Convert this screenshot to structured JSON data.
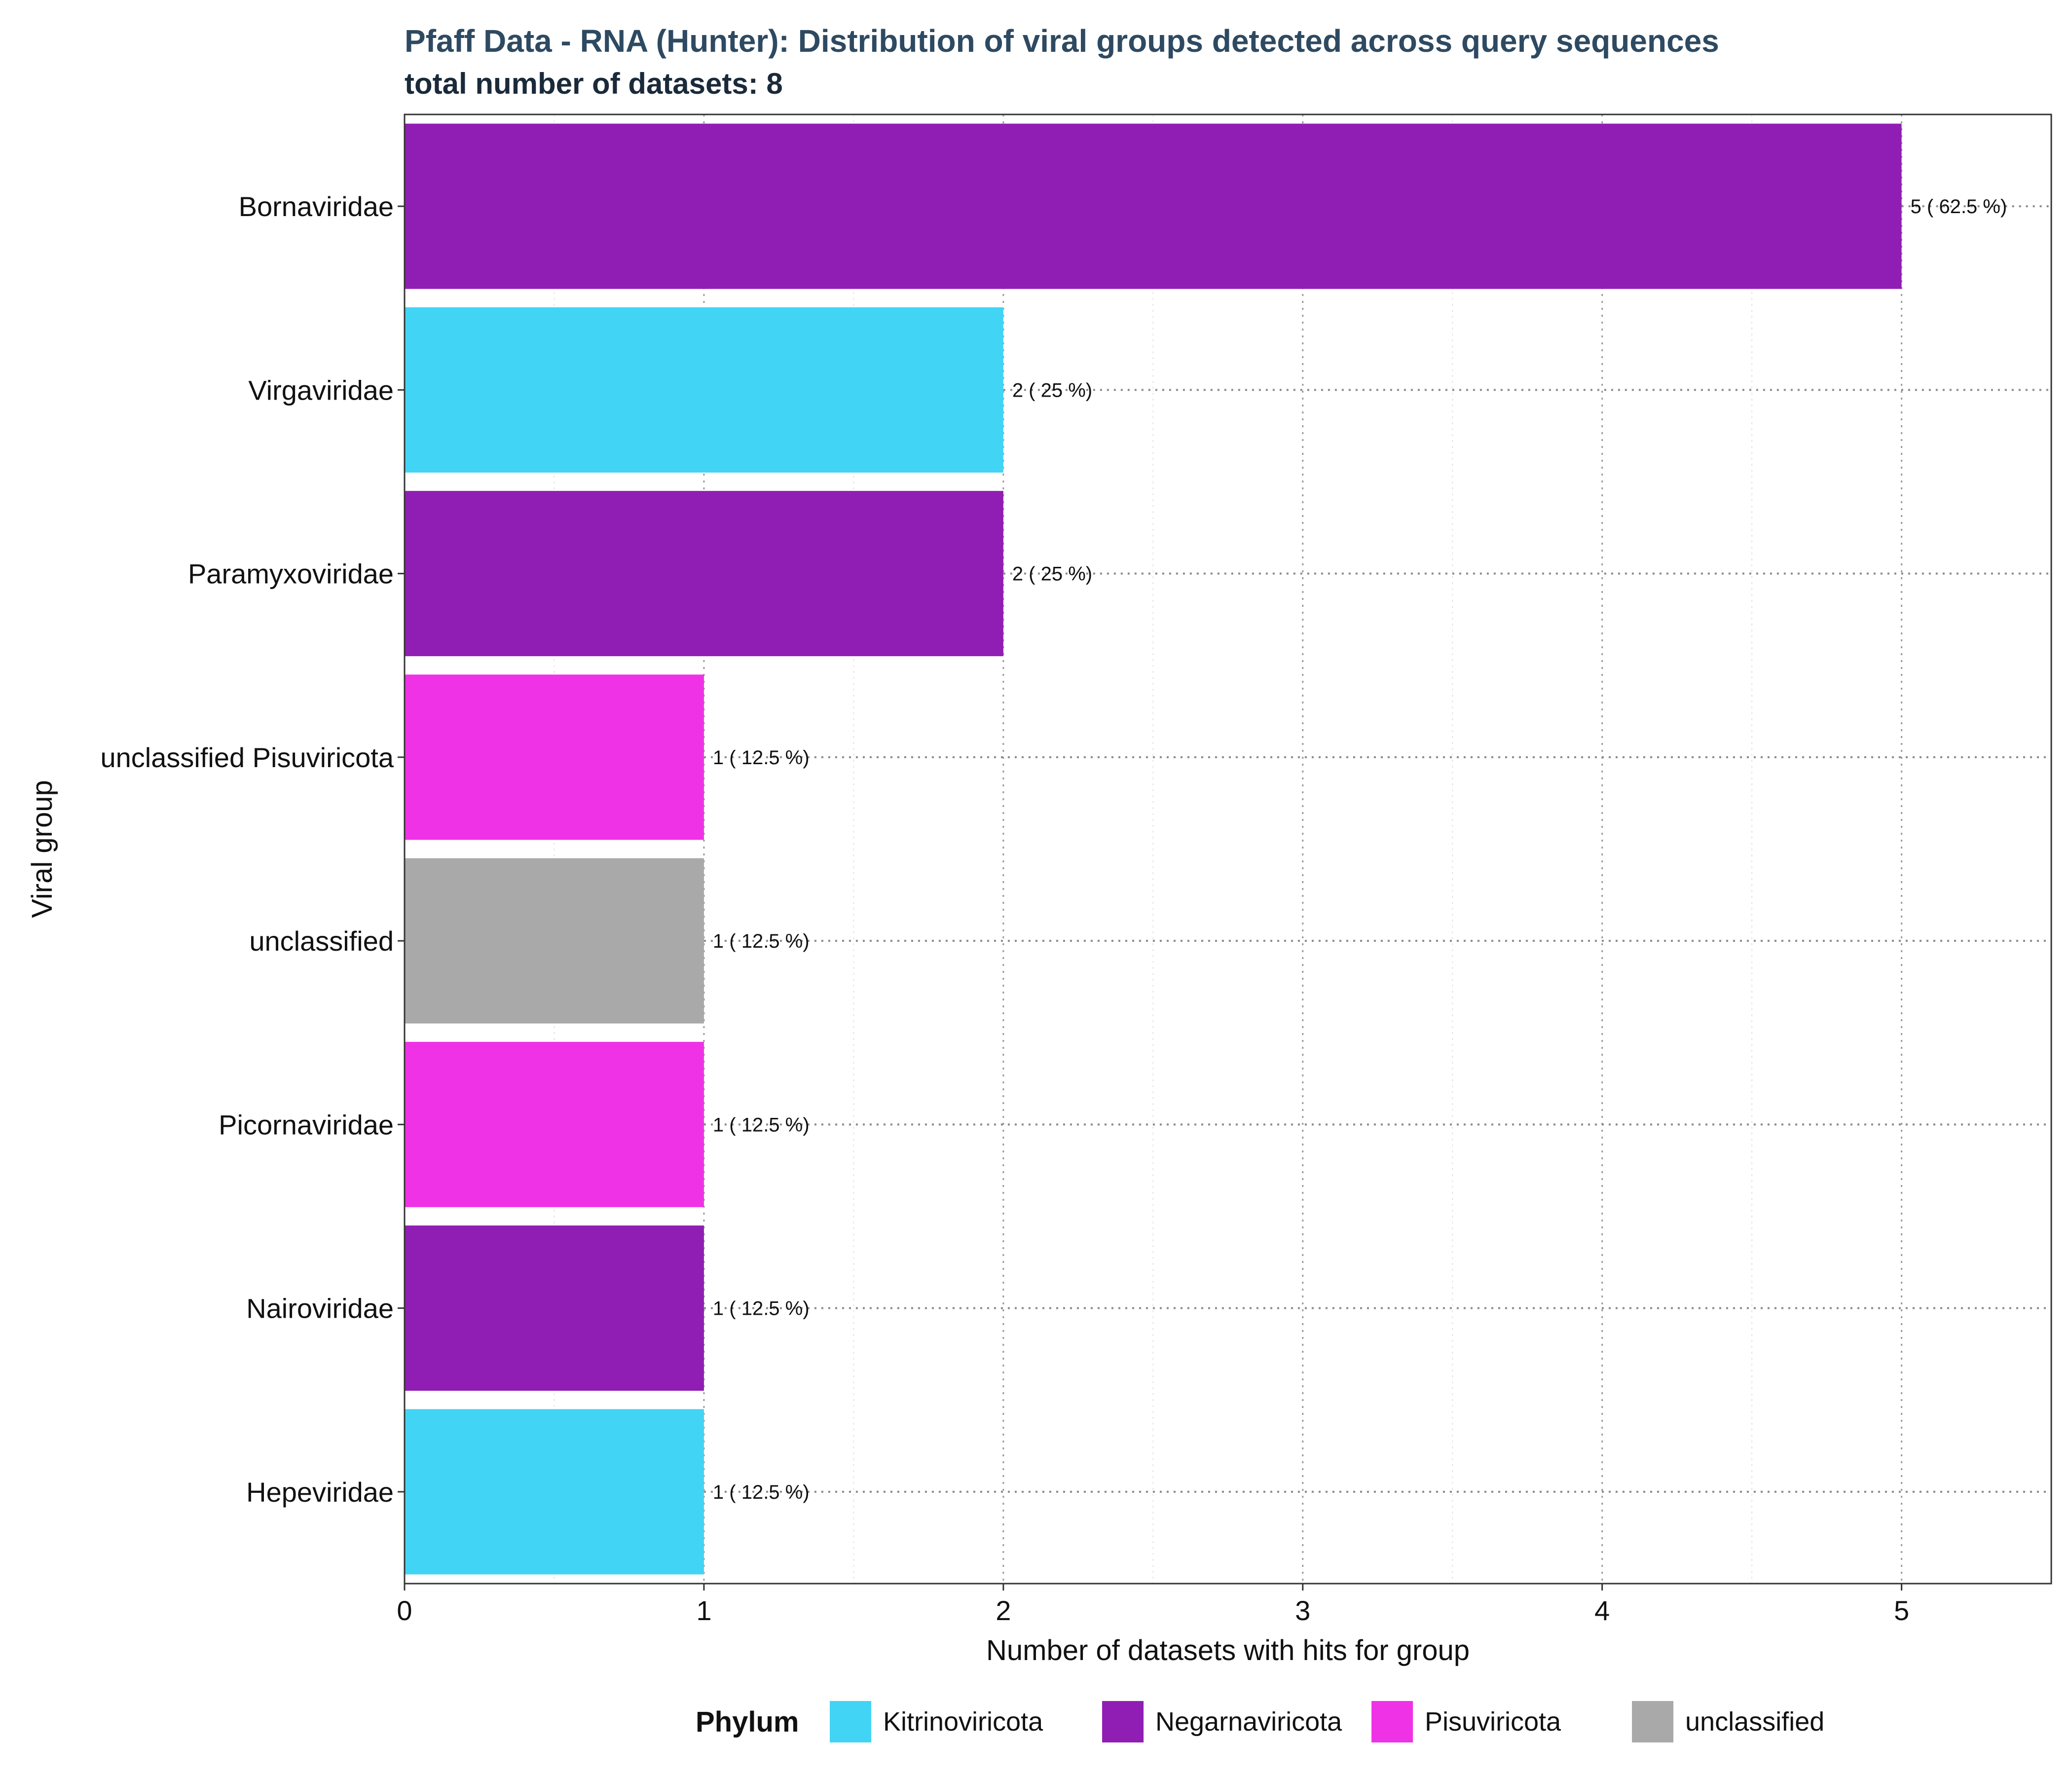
{
  "chart_data": {
    "type": "bar",
    "orientation": "horizontal",
    "title": "Pfaff Data - RNA (Hunter): Distribution of viral groups detected across query sequences",
    "subtitle": "total number of datasets: 8",
    "xlabel": "Number of datasets with hits for group",
    "ylabel": "Viral group",
    "xlim": [
      0,
      5.5
    ],
    "x_ticks": [
      "0",
      "1",
      "2",
      "3",
      "4",
      "5"
    ],
    "grid": true,
    "categories": [
      "Bornaviridae",
      "Virgaviridae",
      "Paramyxoviridae",
      "unclassified Pisuviricota",
      "unclassified",
      "Picornaviridae",
      "Nairoviridae",
      "Hepeviridae"
    ],
    "values": [
      5,
      2,
      2,
      1,
      1,
      1,
      1,
      1
    ],
    "bar_labels": [
      "5 ( 62.5 %)",
      "2 ( 25 %)",
      "2 ( 25 %)",
      "1 ( 12.5 %)",
      "1 ( 12.5 %)",
      "1 ( 12.5 %)",
      "1 ( 12.5 %)",
      "1 ( 12.5 %)"
    ],
    "phylum": [
      "Negarnaviricota",
      "Kitrinoviricota",
      "Negarnaviricota",
      "Pisuviricota",
      "unclassified",
      "Pisuviricota",
      "Negarnaviricota",
      "Kitrinoviricota"
    ],
    "legend": {
      "title": "Phylum",
      "placement": "bottom",
      "items": [
        {
          "name": "Kitrinoviricota",
          "color": "#42d4f4"
        },
        {
          "name": "Negarnaviricota",
          "color": "#911eb4"
        },
        {
          "name": "Pisuviricota",
          "color": "#f032e6"
        },
        {
          "name": "unclassified",
          "color": "#a9a9a9"
        }
      ]
    }
  }
}
